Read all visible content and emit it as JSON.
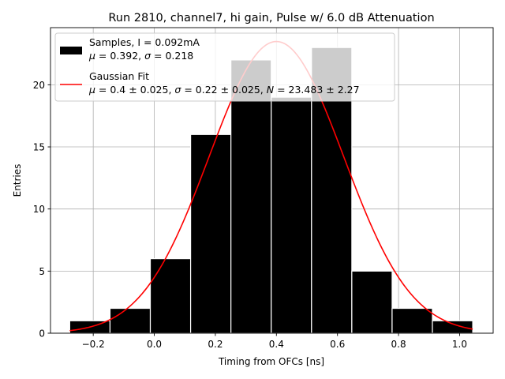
{
  "chart_data": {
    "type": "bar",
    "title": "Run 2810, channel7, hi gain, Pulse w/ 6.0 dB Attenuation",
    "xlabel": "Timing from OFCs [ns]",
    "ylabel": "Entries",
    "xlim": [
      -0.34,
      1.11
    ],
    "ylim": [
      0,
      24.6
    ],
    "grid": true,
    "legend_position": "upper-left",
    "xticks": [
      -0.2,
      0.0,
      0.2,
      0.4,
      0.6,
      0.8,
      1.0
    ],
    "xtick_labels": [
      "−0.2",
      "0.0",
      "0.2",
      "0.4",
      "0.6",
      "0.8",
      "1.0"
    ],
    "yticks": [
      0,
      5,
      10,
      15,
      20
    ],
    "ytick_labels": [
      "0",
      "5",
      "10",
      "15",
      "20"
    ],
    "histogram": {
      "name": "Samples",
      "bin_edges": [
        -0.277,
        -0.145,
        -0.013,
        0.119,
        0.251,
        0.383,
        0.515,
        0.647,
        0.779,
        0.911,
        1.043
      ],
      "counts": [
        1,
        2,
        6,
        16,
        22,
        19,
        23,
        5,
        2,
        1
      ],
      "color": "#000000",
      "edge_color": "#ffffff"
    },
    "fit": {
      "name": "Gaussian Fit",
      "mu": 0.4,
      "sigma": 0.22,
      "N": 23.483,
      "x_range": [
        -0.277,
        1.043
      ],
      "color": "#ff0000"
    },
    "legend": [
      {
        "type": "patch",
        "color": "#000000",
        "line1": "Samples, I = 0.092mA",
        "line2_parts": [
          {
            "t": "μ",
            "i": true
          },
          {
            "t": " = 0.392, "
          },
          {
            "t": "σ",
            "i": true
          },
          {
            "t": " = 0.218"
          }
        ]
      },
      {
        "type": "line",
        "color": "#ff0000",
        "line1": "Gaussian Fit",
        "line2_parts": [
          {
            "t": "μ",
            "i": true
          },
          {
            "t": " = 0.4 ± 0.025, "
          },
          {
            "t": "σ",
            "i": true
          },
          {
            "t": " = 0.22 ± 0.025, "
          },
          {
            "t": "N",
            "i": true
          },
          {
            "t": " = 23.483 ± 2.27"
          }
        ]
      }
    ]
  }
}
